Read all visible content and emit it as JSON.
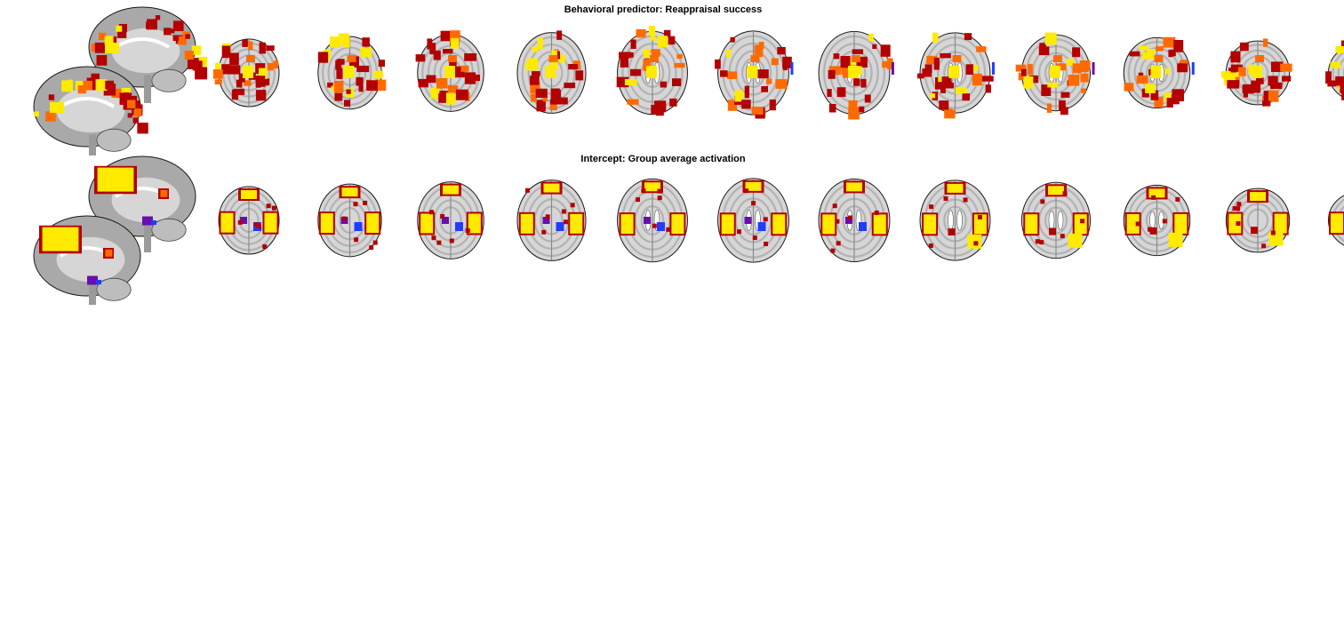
{
  "figure": {
    "rows": [
      {
        "title": "Behavioral predictor: Reappraisal success",
        "pattern": "predictor",
        "has_negative_blobs": true
      },
      {
        "title": "Intercept: Group average activation",
        "pattern": "intercept",
        "has_negative_blobs": true
      }
    ],
    "views": {
      "sagittal_count": 2,
      "axial_slice_count": 12
    },
    "colors": {
      "positive_low": "#b30000",
      "positive_mid": "#ff6a00",
      "positive_high": "#ffea00",
      "negative_low": "#6a0dad",
      "negative_high": "#1f3cff",
      "brain_gray": "#a9a9a9",
      "brain_light": "#d6d6d6",
      "brain_outline": "#1a1a1a",
      "background": "#ffffff"
    }
  }
}
